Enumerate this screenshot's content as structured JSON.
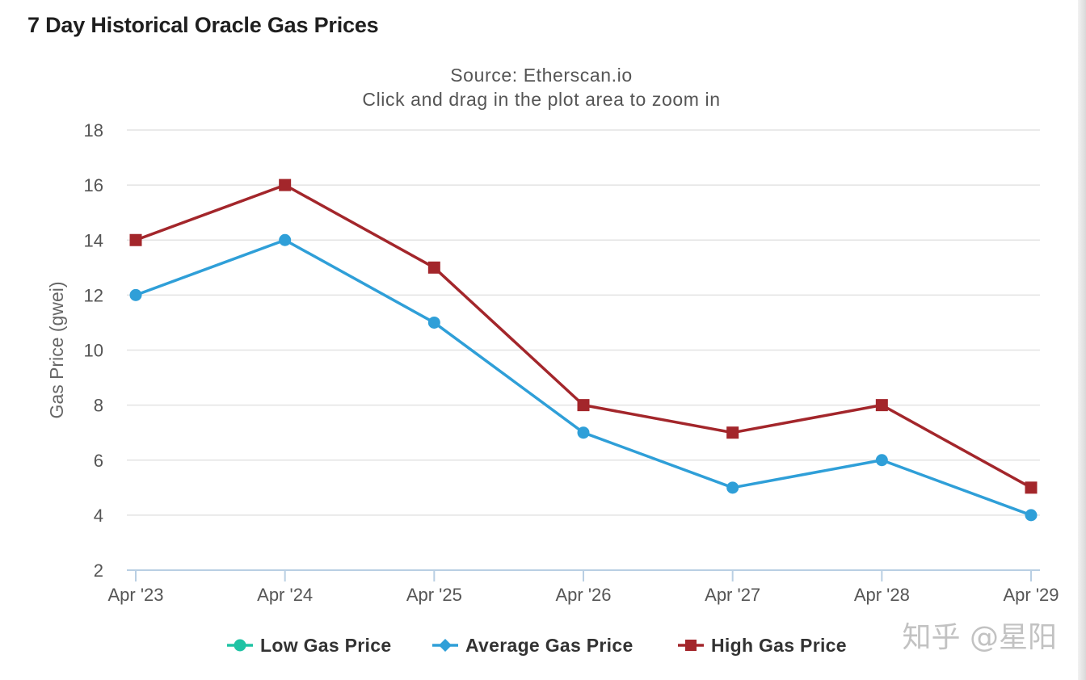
{
  "page": {
    "title": "7 Day Historical Oracle Gas Prices",
    "watermark": "知乎 @星阳"
  },
  "chart_data": {
    "type": "line",
    "title": "",
    "subtitle_lines": [
      "Source: Etherscan.io",
      "Click and drag in the plot area to zoom in"
    ],
    "xlabel": "",
    "ylabel": "Gas Price (gwei)",
    "categories": [
      "Apr '23",
      "Apr '24",
      "Apr '25",
      "Apr '26",
      "Apr '27",
      "Apr '28",
      "Apr '29"
    ],
    "ylim": [
      2,
      18
    ],
    "yticks": [
      2,
      4,
      6,
      8,
      10,
      12,
      14,
      16,
      18
    ],
    "grid": true,
    "legend_position": "bottom-center",
    "series": [
      {
        "name": "Low Gas Price",
        "color": "#1fc3a4",
        "marker": "circle",
        "values": null
      },
      {
        "name": "Average Gas Price",
        "color": "#2f9fd8",
        "marker": "circle",
        "values": [
          12,
          14,
          11,
          7,
          5,
          6,
          4
        ]
      },
      {
        "name": "High Gas Price",
        "color": "#a3262b",
        "marker": "square",
        "values": [
          14,
          16,
          13,
          8,
          7,
          8,
          5
        ]
      }
    ]
  }
}
